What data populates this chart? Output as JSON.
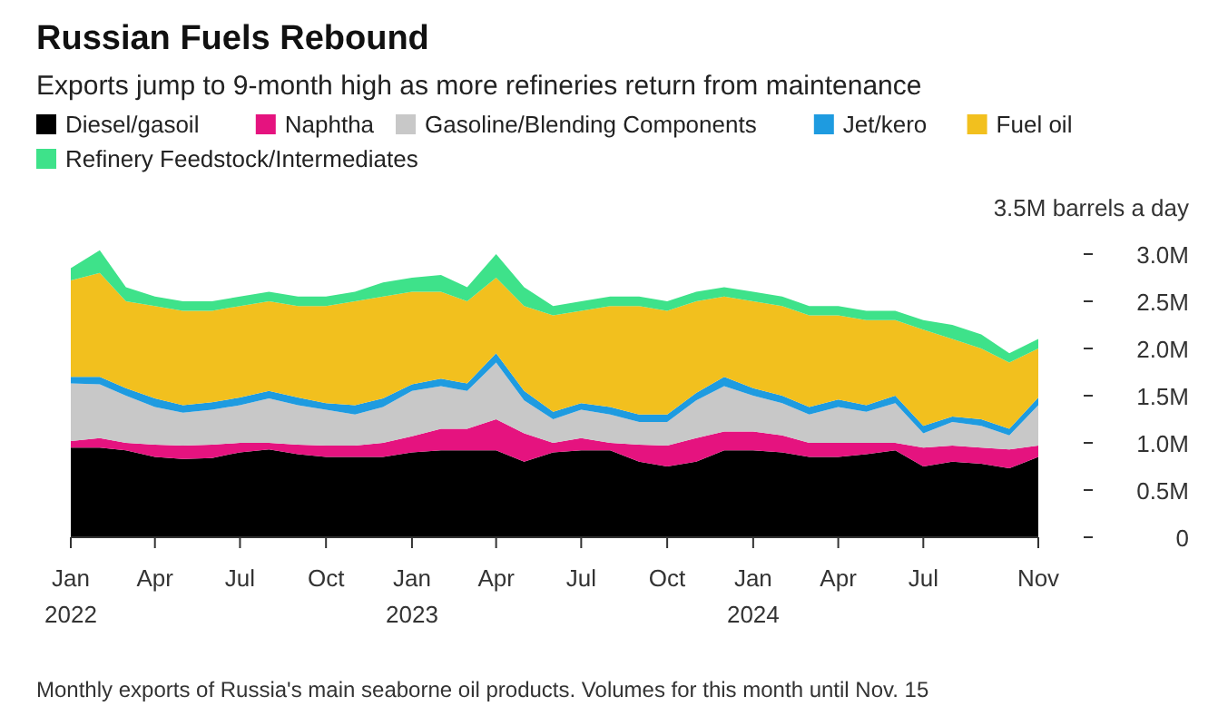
{
  "chart_data": {
    "type": "area",
    "stacked": true,
    "title": "Russian Fuels Rebound",
    "subtitle": "Exports jump to 9-month high as more refineries return from maintenance",
    "x": [
      "2022-01",
      "2022-02",
      "2022-03",
      "2022-04",
      "2022-05",
      "2022-06",
      "2022-07",
      "2022-08",
      "2022-09",
      "2022-10",
      "2022-11",
      "2022-12",
      "2023-01",
      "2023-02",
      "2023-03",
      "2023-04",
      "2023-05",
      "2023-06",
      "2023-07",
      "2023-08",
      "2023-09",
      "2023-10",
      "2023-11",
      "2023-12",
      "2024-01",
      "2024-02",
      "2024-03",
      "2024-04",
      "2024-05",
      "2024-06",
      "2024-07",
      "2024-08",
      "2024-09",
      "2024-10",
      "2024-11"
    ],
    "series": [
      {
        "name": "Diesel/gasoil",
        "color": "#000000",
        "values": [
          0.95,
          0.95,
          0.92,
          0.85,
          0.83,
          0.84,
          0.9,
          0.93,
          0.88,
          0.85,
          0.85,
          0.85,
          0.9,
          0.92,
          0.92,
          0.92,
          0.8,
          0.9,
          0.92,
          0.92,
          0.8,
          0.75,
          0.8,
          0.92,
          0.92,
          0.9,
          0.85,
          0.85,
          0.88,
          0.92,
          0.75,
          0.8,
          0.78,
          0.73,
          0.85
        ]
      },
      {
        "name": "Naphtha",
        "color": "#e5137f",
        "values": [
          0.07,
          0.1,
          0.08,
          0.13,
          0.14,
          0.14,
          0.1,
          0.07,
          0.1,
          0.12,
          0.12,
          0.15,
          0.17,
          0.23,
          0.23,
          0.33,
          0.3,
          0.1,
          0.13,
          0.08,
          0.18,
          0.22,
          0.25,
          0.2,
          0.2,
          0.18,
          0.15,
          0.15,
          0.12,
          0.08,
          0.2,
          0.17,
          0.17,
          0.2,
          0.12
        ]
      },
      {
        "name": "Gasoline/Blending Components",
        "color": "#c8c8c8",
        "values": [
          0.61,
          0.57,
          0.5,
          0.4,
          0.35,
          0.37,
          0.4,
          0.47,
          0.42,
          0.38,
          0.33,
          0.38,
          0.48,
          0.45,
          0.4,
          0.6,
          0.35,
          0.25,
          0.3,
          0.3,
          0.24,
          0.25,
          0.4,
          0.48,
          0.38,
          0.34,
          0.3,
          0.38,
          0.33,
          0.42,
          0.15,
          0.25,
          0.23,
          0.15,
          0.43
        ]
      },
      {
        "name": "Jet/kero",
        "color": "#1e9be0",
        "values": [
          0.07,
          0.08,
          0.08,
          0.09,
          0.08,
          0.08,
          0.08,
          0.08,
          0.08,
          0.07,
          0.1,
          0.09,
          0.07,
          0.08,
          0.08,
          0.1,
          0.1,
          0.08,
          0.07,
          0.08,
          0.08,
          0.08,
          0.08,
          0.1,
          0.08,
          0.08,
          0.08,
          0.08,
          0.07,
          0.08,
          0.08,
          0.06,
          0.07,
          0.07,
          0.08
        ]
      },
      {
        "name": "Fuel oil",
        "color": "#f2c01e",
        "values": [
          1.02,
          1.1,
          0.92,
          0.98,
          1.0,
          0.97,
          0.97,
          0.95,
          0.97,
          1.03,
          1.1,
          1.08,
          0.98,
          0.92,
          0.87,
          0.8,
          0.9,
          1.02,
          0.98,
          1.07,
          1.15,
          1.1,
          0.97,
          0.85,
          0.92,
          0.95,
          0.97,
          0.89,
          0.9,
          0.8,
          1.02,
          0.82,
          0.75,
          0.7,
          0.52
        ]
      },
      {
        "name": "Refinery Feedstock/Intermediates",
        "color": "#3ee28a",
        "values": [
          0.13,
          0.24,
          0.15,
          0.1,
          0.1,
          0.1,
          0.1,
          0.1,
          0.1,
          0.1,
          0.1,
          0.15,
          0.15,
          0.18,
          0.15,
          0.25,
          0.2,
          0.1,
          0.1,
          0.1,
          0.1,
          0.1,
          0.1,
          0.1,
          0.1,
          0.1,
          0.1,
          0.1,
          0.1,
          0.1,
          0.1,
          0.15,
          0.15,
          0.1,
          0.1
        ]
      }
    ],
    "xlim": [
      "2022-01",
      "2024-11"
    ],
    "xticks": [
      {
        "value": "2022-01",
        "label": "Jan\n2022"
      },
      {
        "value": "2022-04",
        "label": "Apr"
      },
      {
        "value": "2022-07",
        "label": "Jul"
      },
      {
        "value": "2022-10",
        "label": "Oct"
      },
      {
        "value": "2023-01",
        "label": "Jan\n2023"
      },
      {
        "value": "2023-04",
        "label": "Apr"
      },
      {
        "value": "2023-07",
        "label": "Jul"
      },
      {
        "value": "2023-10",
        "label": "Oct"
      },
      {
        "value": "2024-01",
        "label": "Jan\n2024"
      },
      {
        "value": "2024-04",
        "label": "Apr"
      },
      {
        "value": "2024-07",
        "label": "Jul"
      },
      {
        "value": "2024-11",
        "label": "Nov"
      }
    ],
    "ylim": [
      0,
      3.5
    ],
    "yticks": [
      {
        "value": 0,
        "label": "0"
      },
      {
        "value": 0.5,
        "label": "0.5M"
      },
      {
        "value": 1,
        "label": "1.0M"
      },
      {
        "value": 1.5,
        "label": "1.5M"
      },
      {
        "value": 2,
        "label": "2.0M"
      },
      {
        "value": 2.5,
        "label": "2.5M"
      },
      {
        "value": 3,
        "label": "3.0M"
      },
      {
        "value": 3.5,
        "label": "3.5M barrels a day"
      }
    ],
    "legend": "top",
    "grid": false,
    "annotations": [
      "Monthly exports of Russia's main seaborne oil products. Volumes for this month until Nov. 15"
    ]
  }
}
